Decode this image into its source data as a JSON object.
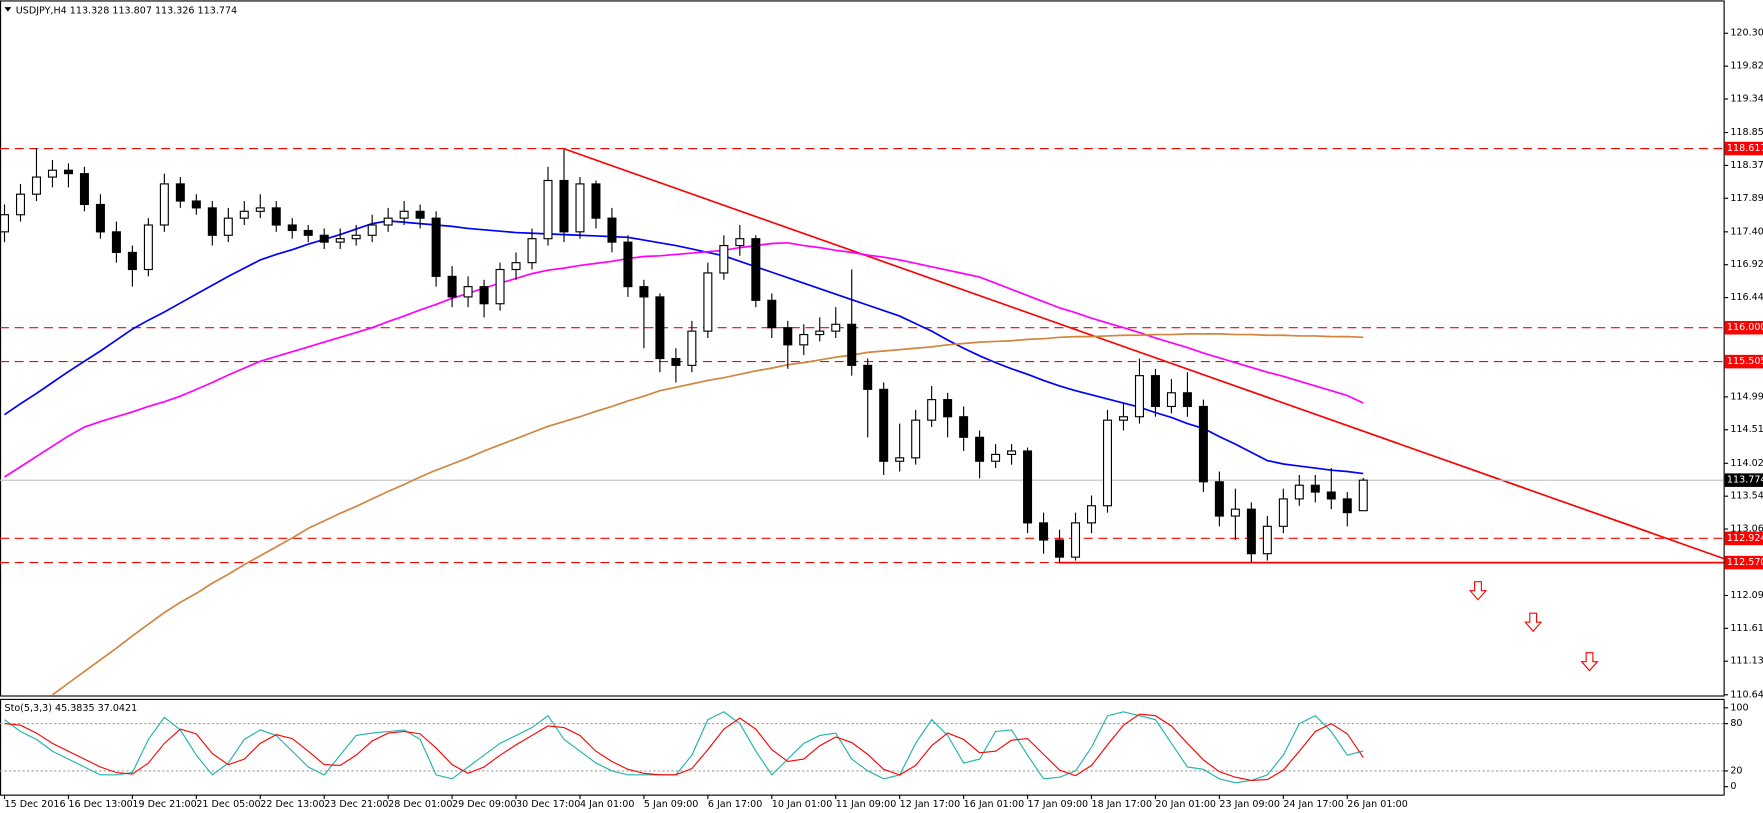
{
  "chart_data": {
    "type": "candlestick",
    "symbol": "USDJPY,H4",
    "bull_color": "#ffffff",
    "bear_color": "#000000",
    "categories": [
      "15 Dec 2016",
      null,
      null,
      null,
      "16 Dec 13:00",
      null,
      null,
      null,
      "19 Dec 21:00",
      null,
      null,
      null,
      "21 Dec 05:00",
      null,
      null,
      null,
      "22 Dec 13:00",
      null,
      null,
      null,
      "23 Dec 21:00",
      null,
      null,
      null,
      "28 Dec 01:00",
      null,
      null,
      null,
      "29 Dec 09:00",
      null,
      null,
      null,
      "30 Dec 17:00",
      null,
      null,
      null,
      "4 Jan 01:00",
      null,
      null,
      null,
      "5 Jan 09:00",
      null,
      null,
      null,
      "6 Jan 17:00",
      null,
      null,
      null,
      "10 Jan 01:00",
      null,
      null,
      null,
      "11 Jan 09:00",
      null,
      null,
      null,
      "12 Jan 17:00",
      null,
      null,
      null,
      "16 Jan 01:00",
      null,
      null,
      null,
      "17 Jan 09:00",
      null,
      null,
      null,
      "18 Jan 17:00",
      null,
      null,
      null,
      "20 Jan 01:00",
      null,
      null,
      null,
      "23 Jan 09:00",
      null,
      null,
      null,
      "24 Jan 17:00",
      null,
      null,
      null,
      "26 Jan 01:00",
      null
    ],
    "open": [
      117.4,
      117.65,
      117.95,
      118.2,
      118.3,
      118.25,
      117.8,
      117.4,
      117.1,
      116.85,
      117.5,
      118.1,
      117.85,
      117.75,
      117.35,
      117.6,
      117.7,
      117.75,
      117.5,
      117.42,
      117.35,
      117.25,
      117.3,
      117.35,
      117.5,
      117.6,
      117.7,
      117.6,
      116.75,
      116.45,
      116.6,
      116.35,
      116.85,
      116.95,
      117.3,
      118.15,
      117.4,
      118.1,
      117.6,
      117.25,
      116.6,
      116.45,
      115.55,
      115.45,
      115.95,
      116.8,
      117.2,
      117.3,
      116.4,
      116.0,
      115.75,
      115.9,
      115.95,
      116.05,
      115.45,
      115.1,
      114.05,
      114.1,
      114.65,
      114.95,
      114.7,
      114.4,
      114.05,
      114.15,
      114.2,
      113.15,
      112.9,
      112.65,
      113.15,
      113.4,
      114.65,
      114.7,
      115.3,
      114.85,
      115.05,
      114.85,
      113.75,
      113.25,
      113.35,
      112.7,
      113.1,
      113.5,
      113.7,
      113.6,
      113.5,
      113.328
    ],
    "high": [
      117.8,
      118.1,
      118.62,
      118.45,
      118.4,
      118.35,
      117.95,
      117.55,
      117.2,
      117.6,
      118.25,
      118.2,
      117.95,
      117.85,
      117.75,
      117.85,
      117.95,
      117.85,
      117.6,
      117.5,
      117.45,
      117.45,
      117.5,
      117.65,
      117.75,
      117.85,
      117.8,
      117.7,
      116.9,
      116.75,
      116.7,
      116.95,
      117.1,
      117.45,
      118.35,
      118.6,
      118.2,
      118.15,
      117.75,
      117.35,
      116.7,
      116.5,
      115.7,
      116.1,
      116.95,
      117.35,
      117.5,
      117.35,
      116.5,
      116.1,
      116.05,
      116.15,
      116.3,
      116.85,
      115.55,
      115.2,
      114.6,
      114.8,
      115.15,
      115.05,
      114.85,
      114.5,
      114.3,
      114.3,
      114.25,
      113.3,
      113.05,
      113.3,
      113.55,
      114.8,
      114.9,
      115.55,
      115.4,
      115.25,
      115.35,
      114.95,
      113.9,
      113.65,
      113.45,
      113.25,
      113.65,
      113.85,
      113.85,
      113.95,
      113.6,
      113.807
    ],
    "low": [
      117.25,
      117.55,
      117.85,
      118.05,
      118.05,
      117.7,
      117.3,
      116.95,
      116.6,
      116.75,
      117.4,
      117.75,
      117.65,
      117.2,
      117.25,
      117.5,
      117.6,
      117.4,
      117.3,
      117.25,
      117.15,
      117.15,
      117.2,
      117.25,
      117.4,
      117.5,
      117.45,
      116.6,
      116.3,
      116.3,
      116.15,
      116.25,
      116.7,
      116.85,
      117.2,
      117.25,
      117.3,
      117.45,
      117.1,
      116.45,
      115.7,
      115.35,
      115.2,
      115.35,
      115.85,
      116.7,
      117.05,
      116.3,
      115.85,
      115.4,
      115.6,
      115.8,
      115.85,
      115.3,
      114.4,
      113.85,
      113.9,
      114.0,
      114.55,
      114.4,
      114.2,
      113.8,
      113.95,
      114.0,
      113.0,
      112.7,
      112.57,
      112.6,
      113.0,
      113.3,
      114.5,
      114.6,
      114.7,
      114.75,
      114.7,
      113.6,
      113.1,
      112.9,
      112.57,
      112.6,
      113.0,
      113.4,
      113.45,
      113.35,
      113.1,
      113.326
    ],
    "close": [
      117.65,
      117.95,
      118.2,
      118.3,
      118.25,
      117.8,
      117.4,
      117.1,
      116.85,
      117.5,
      118.1,
      117.85,
      117.75,
      117.35,
      117.6,
      117.7,
      117.75,
      117.5,
      117.42,
      117.35,
      117.25,
      117.3,
      117.35,
      117.5,
      117.6,
      117.7,
      117.6,
      116.75,
      116.45,
      116.6,
      116.35,
      116.85,
      116.95,
      117.3,
      118.15,
      117.4,
      118.1,
      117.6,
      117.25,
      116.6,
      116.45,
      115.55,
      115.45,
      115.95,
      116.8,
      117.2,
      117.3,
      116.4,
      116.0,
      115.75,
      115.9,
      115.95,
      116.05,
      115.45,
      115.1,
      114.05,
      114.1,
      114.65,
      114.95,
      114.7,
      114.4,
      114.05,
      114.15,
      114.2,
      113.15,
      112.9,
      112.65,
      113.15,
      113.4,
      114.65,
      114.7,
      115.3,
      114.85,
      115.05,
      114.85,
      113.75,
      113.25,
      113.35,
      112.7,
      113.1,
      113.5,
      113.7,
      113.6,
      113.5,
      113.3,
      113.774
    ],
    "moving_averages": [
      {
        "color": "#0000ff",
        "values": [
          114.73,
          114.89,
          115.04,
          115.2,
          115.36,
          115.51,
          115.66,
          115.82,
          115.98,
          116.11,
          116.23,
          116.36,
          116.49,
          116.62,
          116.75,
          116.87,
          116.99,
          117.07,
          117.14,
          117.22,
          117.29,
          117.36,
          117.44,
          117.52,
          117.56,
          117.54,
          117.52,
          117.5,
          117.48,
          117.45,
          117.43,
          117.41,
          117.39,
          117.38,
          117.37,
          117.36,
          117.35,
          117.34,
          117.33,
          117.32,
          117.28,
          117.24,
          117.2,
          117.15,
          117.1,
          117.05,
          116.97,
          116.89,
          116.81,
          116.73,
          116.65,
          116.57,
          116.49,
          116.41,
          116.33,
          116.25,
          116.17,
          116.06,
          115.95,
          115.82,
          115.7,
          115.59,
          115.49,
          115.4,
          115.32,
          115.23,
          115.15,
          115.08,
          115.02,
          114.96,
          114.9,
          114.84,
          114.76,
          114.69,
          114.6,
          114.53,
          114.41,
          114.3,
          114.18,
          114.06,
          114.01,
          113.98,
          113.95,
          113.92,
          113.9,
          113.87
        ]
      },
      {
        "color": "#ff00ff",
        "values": [
          113.82,
          113.97,
          114.12,
          114.27,
          114.42,
          114.55,
          114.63,
          114.7,
          114.77,
          114.85,
          114.92,
          115.0,
          115.1,
          115.2,
          115.31,
          115.41,
          115.51,
          115.58,
          115.65,
          115.72,
          115.79,
          115.86,
          115.93,
          116.0,
          116.09,
          116.17,
          116.26,
          116.34,
          116.43,
          116.5,
          116.58,
          116.65,
          116.72,
          116.79,
          116.84,
          116.87,
          116.91,
          116.94,
          116.97,
          117.01,
          117.04,
          117.05,
          117.07,
          117.09,
          117.11,
          117.13,
          117.17,
          117.2,
          117.23,
          117.24,
          117.2,
          117.17,
          117.13,
          117.1,
          117.06,
          117.03,
          116.99,
          116.94,
          116.89,
          116.84,
          116.79,
          116.74,
          116.65,
          116.56,
          116.47,
          116.38,
          116.29,
          116.22,
          116.14,
          116.07,
          116.0,
          115.93,
          115.85,
          115.78,
          115.71,
          115.63,
          115.56,
          115.49,
          115.42,
          115.35,
          115.29,
          115.22,
          115.15,
          115.08,
          115.01,
          114.9
        ]
      },
      {
        "color": "#d2853f",
        "values": [
          null,
          null,
          null,
          110.64,
          110.81,
          110.98,
          111.15,
          111.32,
          111.5,
          111.67,
          111.84,
          111.99,
          112.12,
          112.27,
          112.4,
          112.54,
          112.67,
          112.8,
          112.93,
          113.07,
          113.18,
          113.29,
          113.39,
          113.5,
          113.61,
          113.71,
          113.82,
          113.92,
          114.01,
          114.1,
          114.2,
          114.29,
          114.38,
          114.47,
          114.56,
          114.63,
          114.7,
          114.78,
          114.85,
          114.93,
          115.0,
          115.08,
          115.13,
          115.18,
          115.23,
          115.27,
          115.32,
          115.37,
          115.41,
          115.46,
          115.49,
          115.53,
          115.57,
          115.6,
          115.64,
          115.66,
          115.68,
          115.7,
          115.72,
          115.75,
          115.77,
          115.79,
          115.8,
          115.81,
          115.83,
          115.84,
          115.86,
          115.87,
          115.87,
          115.88,
          115.89,
          115.89,
          115.9,
          115.9,
          115.91,
          115.91,
          115.91,
          115.9,
          115.9,
          115.89,
          115.89,
          115.88,
          115.88,
          115.87,
          115.87,
          115.86
        ]
      }
    ],
    "ylim": [
      110.63,
      120.78
    ],
    "yticks": [
      {
        "value": 120.3,
        "label": "120.300"
      },
      {
        "value": 119.82,
        "label": "119.820"
      },
      {
        "value": 119.34,
        "label": "119.340"
      },
      {
        "value": 118.85,
        "label": "118.850"
      },
      {
        "value": 118.37,
        "label": "118.370"
      },
      {
        "value": 117.89,
        "label": "117.890"
      },
      {
        "value": 117.4,
        "label": "117.400"
      },
      {
        "value": 116.92,
        "label": "116.920"
      },
      {
        "value": 116.44,
        "label": "116.440"
      },
      {
        "value": 114.99,
        "label": "114.990"
      },
      {
        "value": 114.51,
        "label": "114.510"
      },
      {
        "value": 114.02,
        "label": "114.020"
      },
      {
        "value": 113.54,
        "label": "113.540"
      },
      {
        "value": 113.06,
        "label": "113.060"
      },
      {
        "value": 112.09,
        "label": "112.090"
      },
      {
        "value": 111.61,
        "label": "111.610"
      },
      {
        "value": 111.13,
        "label": "111.130"
      },
      {
        "value": 110.64,
        "label": "110.640"
      }
    ],
    "levels": [
      118.617,
      {
        "value": 116,
        "label": "116.000"
      },
      115.505,
      112.924,
      {
        "value": 112.57,
        "label": "112.570"
      }
    ],
    "level_color": "#ff0000",
    "trend_line": [
      118.617,
      112.63
    ],
    "oscillator": {
      "type": "line",
      "title": "Sto(5,3,3)",
      "series": [
        {
          "color": "#20b2aa",
          "values": [
            85,
            70,
            60,
            45,
            35,
            25,
            15,
            15,
            18,
            60,
            88,
            72,
            40,
            15,
            30,
            60,
            72,
            65,
            45,
            25,
            15,
            40,
            65,
            68,
            70,
            72,
            60,
            15,
            10,
            25,
            40,
            55,
            65,
            75,
            90,
            60,
            45,
            30,
            20,
            15,
            15,
            15,
            15,
            40,
            85,
            95,
            80,
            45,
            15,
            35,
            55,
            65,
            68,
            35,
            20,
            10,
            15,
            55,
            85,
            65,
            30,
            35,
            70,
            72,
            40,
            10,
            12,
            20,
            50,
            90,
            95,
            90,
            85,
            55,
            25,
            22,
            10,
            5,
            8,
            15,
            40,
            80,
            90,
            70,
            40,
            45.3835
          ]
        },
        {
          "color": "#ff0000",
          "values": [
            80,
            78,
            68,
            55,
            45,
            35,
            25,
            18,
            16,
            30,
            55,
            73,
            67,
            42,
            28,
            35,
            55,
            66,
            61,
            45,
            28,
            27,
            40,
            58,
            68,
            70,
            67,
            49,
            28,
            17,
            25,
            40,
            53,
            65,
            77,
            75,
            65,
            45,
            32,
            22,
            17,
            15,
            15,
            23,
            47,
            73,
            87,
            73,
            47,
            32,
            35,
            52,
            63,
            56,
            41,
            22,
            15,
            27,
            52,
            68,
            60,
            43,
            45,
            59,
            61,
            41,
            21,
            14,
            27,
            53,
            78,
            92,
            90,
            77,
            55,
            34,
            19,
            12,
            8,
            9,
            21,
            45,
            70,
            80,
            67,
            37.0421
          ]
        }
      ],
      "ylim": [
        0,
        100
      ],
      "yticks": [
        100,
        80,
        20,
        0
      ]
    }
  }
}
